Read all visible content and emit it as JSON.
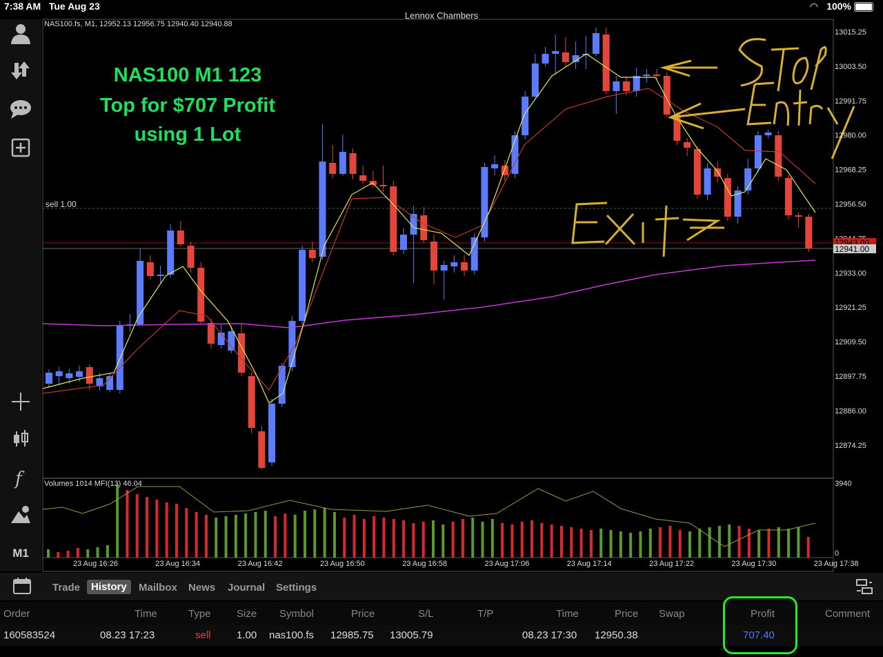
{
  "status_bar": {
    "time": "7:38 AM",
    "date": "Tue Aug 23",
    "center_title": "Lennox Chambers",
    "battery": "100%"
  },
  "chart": {
    "info": "NAS100.fs, M1, 12952.13 12956.75 12940.40 12940.88",
    "overlay_title": [
      "NAS100 M1 123",
      "Top for $707 Profit",
      "using 1 Lot"
    ],
    "overlay_color": "#1fe05a",
    "annotations": [
      "Stop",
      "Entry",
      "Exit"
    ],
    "position_label": "sell 1.00",
    "price_labels": [
      "13015.25",
      "13003.50",
      "12991.75",
      "12980.00",
      "12968.25",
      "12956.50",
      "12944.75",
      "12933.00",
      "12921.25",
      "12909.50",
      "12897.75",
      "12886.00",
      "12874.25"
    ],
    "current_price_red": "12943.00",
    "current_price": "12941.00",
    "volume_label": "Volumes 1014 MFI(13) 46.04",
    "volume_scale": [
      "3940",
      "0"
    ],
    "time_labels": [
      "23 Aug 16:26",
      "23 Aug 16:34",
      "23 Aug 16:42",
      "23 Aug 16:50",
      "23 Aug 16:58",
      "23 Aug 17:06",
      "23 Aug 17:14",
      "23 Aug 17:22",
      "23 Aug 17:30",
      "23 Aug 17:38"
    ],
    "colors": {
      "bull": "#5b7cff",
      "bear": "#e4453a",
      "ma_fast": "#e6e64a",
      "ma_slow": "#c0382e",
      "ma_long": "#c838d8",
      "vol_up": "#5a9a2a",
      "vol_down": "#d8282a"
    }
  },
  "sidebar_icons": [
    "account-icon",
    "trade-transfer-icon",
    "chat-icon",
    "add-chart-icon",
    "crosshair-icon",
    "chart-type-icon",
    "indicators-icon",
    "objects-icon"
  ],
  "timeframe": "M1",
  "tabs": [
    "Trade",
    "History",
    "Mailbox",
    "News",
    "Journal",
    "Settings"
  ],
  "active_tab": "History",
  "table": {
    "headers": [
      "Order",
      "Time",
      "Type",
      "Size",
      "Symbol",
      "Price",
      "S/L",
      "T/P",
      "Time",
      "Price",
      "Swap",
      "Profit",
      "Comment"
    ],
    "rows": [
      {
        "order": "160583524",
        "open_time": "08.23 17:23",
        "type": "sell",
        "size": "1.00",
        "symbol": "nas100.fs",
        "open_price": "12985.75",
        "sl": "13005.79",
        "tp": "",
        "close_time": "08.23 17:30",
        "close_price": "12950.38",
        "swap": "",
        "profit": "707.40",
        "comment": ""
      }
    ]
  }
}
